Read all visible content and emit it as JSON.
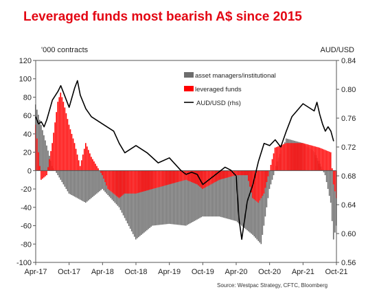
{
  "title": "Leveraged funds most bearish A$ since 2015",
  "left_unit": "'000 contracts",
  "right_unit": "AUD/USD",
  "source": "Source: Westpac Strategy, CFTC, Bloomberg",
  "colors": {
    "title": "#e30613",
    "asset_managers": "#6d6d6d",
    "leveraged": "#ff0000",
    "aud": "#000000"
  },
  "chart_data": {
    "type": "bar",
    "title": "Leveraged funds most bearish A$ since 2015",
    "ylabel": "'000 contracts",
    "y2label": "AUD/USD",
    "ylim": [
      -100,
      120
    ],
    "y2lim": [
      0.56,
      0.84
    ],
    "yticks": [
      "120",
      "100",
      "80",
      "60",
      "40",
      "20",
      "0",
      "-20",
      "-40",
      "-60",
      "-80",
      "-100"
    ],
    "y2ticks": [
      "0.84",
      "0.80",
      "0.76",
      "0.72",
      "0.68",
      "0.64",
      "0.60",
      "0.56"
    ],
    "x_tick_labels": [
      "Apr-17",
      "Oct-17",
      "Apr-18",
      "Oct-18",
      "Apr-19",
      "Oct-19",
      "Apr-20",
      "Oct-20",
      "Apr-21",
      "Oct-21"
    ],
    "x_range_months": [
      0,
      54
    ],
    "legend_position": "top-center",
    "series": [
      {
        "name": "asset managers/institutional",
        "kind": "bar",
        "x": [
          0,
          3,
          6,
          9,
          12,
          15,
          18,
          21,
          24,
          27,
          30,
          33,
          36,
          39,
          40.5,
          42,
          43.5,
          45,
          48,
          50,
          52,
          53,
          53.5,
          54
        ],
        "values": [
          72,
          5,
          -25,
          -35,
          -20,
          -40,
          -75,
          -60,
          -58,
          -60,
          -50,
          -50,
          -55,
          -70,
          -80,
          -20,
          10,
          35,
          30,
          20,
          -5,
          -35,
          -75,
          -60
        ]
      },
      {
        "name": "leveraged funds",
        "kind": "bar",
        "x": [
          0,
          1,
          2,
          3,
          4,
          4.5,
          5,
          6,
          7,
          8,
          9,
          10,
          11,
          12,
          13,
          14,
          15,
          16,
          18,
          21,
          24,
          27,
          29,
          30,
          33,
          36,
          38,
          39,
          40,
          41,
          42,
          43,
          45,
          48,
          51,
          53,
          53.5,
          54
        ],
        "values": [
          50,
          -10,
          -5,
          30,
          75,
          85,
          75,
          50,
          30,
          5,
          30,
          15,
          5,
          -5,
          -20,
          -25,
          -30,
          -25,
          -25,
          -20,
          -15,
          -10,
          -15,
          -20,
          -10,
          -5,
          -5,
          -30,
          -35,
          -25,
          0,
          25,
          30,
          30,
          25,
          20,
          -15,
          -30
        ]
      },
      {
        "name": "AUD/USD (rhs)",
        "kind": "line",
        "x": [
          0,
          0.5,
          1,
          1.5,
          2,
          3,
          4,
          4.5,
          5,
          6,
          7,
          7.5,
          8,
          9,
          10,
          12,
          14,
          15,
          16,
          18,
          20,
          22,
          24,
          26,
          27,
          28,
          29,
          30,
          32,
          34,
          35,
          36,
          36.5,
          37,
          38,
          39,
          40,
          41,
          42,
          43,
          44,
          45,
          46,
          48,
          50,
          50.5,
          51,
          51.5,
          52,
          52.5,
          53,
          53.5
        ],
        "values": [
          0.762,
          0.752,
          0.755,
          0.748,
          0.758,
          0.785,
          0.797,
          0.805,
          0.795,
          0.775,
          0.802,
          0.812,
          0.792,
          0.773,
          0.762,
          0.752,
          0.742,
          0.725,
          0.712,
          0.722,
          0.712,
          0.698,
          0.705,
          0.688,
          0.682,
          0.685,
          0.682,
          0.668,
          0.68,
          0.692,
          0.688,
          0.68,
          0.62,
          0.592,
          0.645,
          0.668,
          0.7,
          0.725,
          0.722,
          0.73,
          0.72,
          0.742,
          0.762,
          0.78,
          0.77,
          0.782,
          0.765,
          0.752,
          0.742,
          0.748,
          0.742,
          0.728
        ]
      }
    ]
  }
}
